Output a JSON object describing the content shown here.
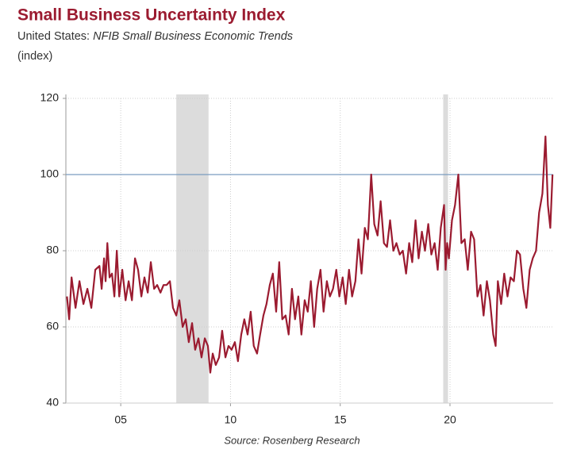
{
  "chart_data": {
    "type": "line",
    "title": "Small Business Uncertainty Index",
    "subtitle": [
      "United States:",
      "NFIB Small Business Economic Trends"
    ],
    "unit_label": "(index)",
    "source": "Source: Rosenberg Research",
    "xlim": [
      2002.5,
      2024.7
    ],
    "xticks": [
      {
        "value": 2005,
        "label": "05"
      },
      {
        "value": 2010,
        "label": "10"
      },
      {
        "value": 2015,
        "label": "15"
      },
      {
        "value": 2020,
        "label": "20"
      }
    ],
    "ylim": [
      40,
      120
    ],
    "yticks": [
      40,
      60,
      80,
      100,
      120
    ],
    "grid": true,
    "reference_line": {
      "value": 100,
      "color": "#7a9cc0"
    },
    "shaded_periods": [
      [
        2007.53,
        2009.0
      ],
      [
        2019.69,
        2019.91
      ]
    ],
    "shade_color": "#dcdcdc",
    "x": [
      2002.55,
      2002.65,
      2002.76,
      2002.94,
      2003.12,
      2003.3,
      2003.48,
      2003.66,
      2003.84,
      2004.03,
      2004.13,
      2004.24,
      2004.31,
      2004.39,
      2004.49,
      2004.6,
      2004.71,
      2004.82,
      2004.93,
      2005.07,
      2005.22,
      2005.36,
      2005.51,
      2005.65,
      2005.79,
      2005.94,
      2006.08,
      2006.23,
      2006.37,
      2006.52,
      2006.66,
      2006.81,
      2006.95,
      2007.09,
      2007.24,
      2007.38,
      2007.53,
      2007.67,
      2007.82,
      2007.96,
      2008.1,
      2008.25,
      2008.39,
      2008.54,
      2008.68,
      2008.83,
      2008.97,
      2009.08,
      2009.19,
      2009.33,
      2009.48,
      2009.62,
      2009.77,
      2009.91,
      2010.05,
      2010.2,
      2010.34,
      2010.49,
      2010.63,
      2010.78,
      2010.92,
      2011.06,
      2011.21,
      2011.35,
      2011.5,
      2011.64,
      2011.79,
      2011.93,
      2012.08,
      2012.22,
      2012.36,
      2012.51,
      2012.65,
      2012.8,
      2012.94,
      2013.09,
      2013.23,
      2013.38,
      2013.52,
      2013.66,
      2013.81,
      2013.95,
      2014.1,
      2014.24,
      2014.39,
      2014.53,
      2014.67,
      2014.82,
      2014.96,
      2015.11,
      2015.25,
      2015.4,
      2015.54,
      2015.69,
      2015.83,
      2015.97,
      2016.12,
      2016.26,
      2016.41,
      2016.55,
      2016.7,
      2016.84,
      2016.99,
      2017.13,
      2017.27,
      2017.42,
      2017.56,
      2017.71,
      2017.85,
      2018.0,
      2018.14,
      2018.28,
      2018.43,
      2018.57,
      2018.72,
      2018.86,
      2019.01,
      2019.15,
      2019.3,
      2019.44,
      2019.58,
      2019.73,
      2019.8,
      2019.87,
      2019.95,
      2020.09,
      2020.23,
      2020.38,
      2020.52,
      2020.67,
      2020.81,
      2020.96,
      2021.1,
      2021.25,
      2021.39,
      2021.53,
      2021.68,
      2021.82,
      2021.97,
      2022.08,
      2022.18,
      2022.33,
      2022.47,
      2022.62,
      2022.76,
      2022.91,
      2023.05,
      2023.19,
      2023.34,
      2023.48,
      2023.63,
      2023.77,
      2023.92,
      2024.06,
      2024.21,
      2024.35,
      2024.46,
      2024.57,
      2024.67
    ],
    "series": [
      {
        "color": "#9b1b30",
        "values": [
          68,
          62,
          73,
          65,
          72,
          66,
          70,
          65,
          75,
          76,
          70,
          78,
          72,
          82,
          73,
          74,
          68,
          80,
          68,
          75,
          67,
          72,
          67,
          78,
          75,
          68,
          73,
          69,
          77,
          70,
          71,
          69,
          71,
          71,
          72,
          65,
          63,
          67,
          60,
          62,
          56,
          61,
          54,
          57,
          52,
          57,
          55,
          48,
          53,
          50,
          52,
          59,
          52,
          55,
          54,
          56,
          51,
          58,
          62,
          58,
          64,
          55,
          53,
          58,
          63,
          66,
          71,
          74,
          64,
          77,
          62,
          63,
          58,
          70,
          62,
          68,
          58,
          67,
          64,
          72,
          60,
          70,
          75,
          64,
          72,
          68,
          70,
          75,
          68,
          73,
          66,
          75,
          68,
          72,
          83,
          74,
          86,
          83,
          100,
          87,
          84,
          93,
          82,
          81,
          88,
          80,
          82,
          79,
          80,
          74,
          82,
          77,
          88,
          78,
          85,
          80,
          87,
          79,
          82,
          75,
          86,
          92,
          75,
          82,
          78,
          88,
          92,
          100,
          82,
          83,
          75,
          85,
          83,
          68,
          71,
          63,
          72,
          67,
          58,
          55,
          72,
          66,
          74,
          68,
          73,
          72,
          80,
          79,
          70,
          65,
          75,
          78,
          80,
          90,
          95,
          110,
          92,
          86,
          100
        ]
      }
    ]
  }
}
